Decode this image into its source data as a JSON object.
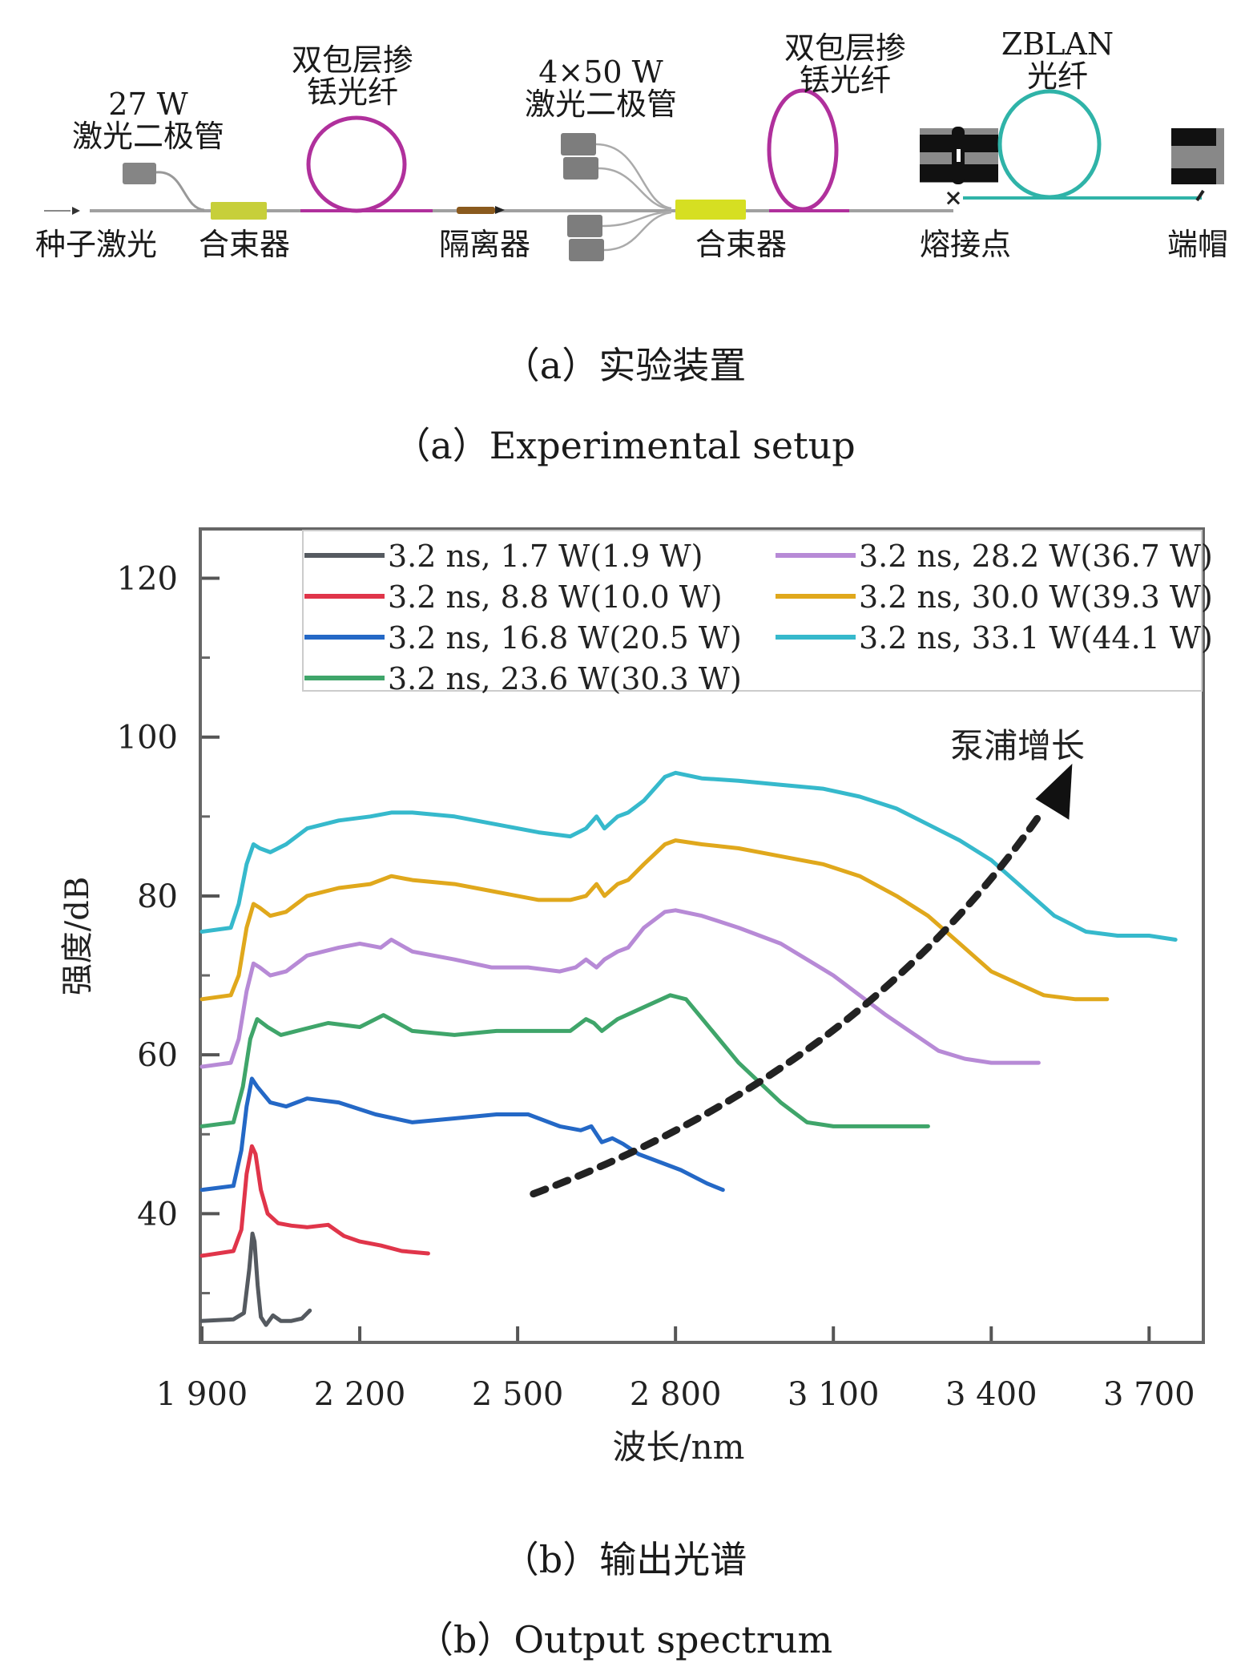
{
  "setup": {
    "labels": {
      "pump_diode_small_power": "27 W",
      "pump_diode_small_name": "激光二极管",
      "gain_fiber_1_line1": "双包层掺",
      "gain_fiber_1_line2": "铥光纤",
      "pump_diode_array_power": "4×50 W",
      "pump_diode_array_name": "激光二极管",
      "gain_fiber_2_line1": "双包层掺",
      "gain_fiber_2_line2": "铥光纤",
      "zblan_line1": "ZBLAN",
      "zblan_line2": "光纤",
      "seed": "种子激光",
      "combiner_1": "合束器",
      "isolator": "隔离器",
      "combiner_2": "合束器",
      "splice": "熔接点",
      "endcap": "端帽"
    },
    "colors": {
      "tm_fiber": "#b0309c",
      "zblan_fiber": "#2fb3a8",
      "combiner": "#c7cf3a",
      "isolator": "#8a5a1e",
      "diode": "#7d7d7d",
      "fiber": "#9a9a9a"
    },
    "caption_cn": "（a）实验装置",
    "caption_en": "（a）Experimental setup"
  },
  "chart_data": {
    "type": "line",
    "title": "",
    "xlabel": "波长/nm",
    "ylabel": "强度/dB",
    "xlim": [
      1900,
      3800
    ],
    "ylim": [
      24,
      126
    ],
    "xticks": [
      1900,
      2200,
      2500,
      2800,
      3100,
      3400,
      3700
    ],
    "xtick_labels": [
      "1 900",
      "2 200",
      "2 500",
      "2 800",
      "3 100",
      "3 400",
      "3 700"
    ],
    "yticks": [
      40,
      60,
      80,
      100,
      120
    ],
    "ytick_labels": [
      "40",
      "60",
      "80",
      "100",
      "120"
    ],
    "grid": false,
    "legend_position": "top",
    "annotation": {
      "text": "泵浦增长",
      "arrow_from": [
        2530,
        42.5
      ],
      "arrow_mid": [
        3150,
        62
      ],
      "arrow_to": [
        3490,
        90
      ],
      "style": "dashed-arrow"
    },
    "series": [
      {
        "name": "3.2 ns, 1.7 W(1.9 W)",
        "color": "#555a60",
        "x": [
          1900,
          1960,
          1980,
          1990,
          1996,
          2000,
          2006,
          2012,
          2022,
          2035,
          2050,
          2070,
          2090,
          2105
        ],
        "y": [
          26.5,
          26.7,
          27.5,
          33,
          37.5,
          36.5,
          31,
          27,
          26,
          27.2,
          26.5,
          26.5,
          26.8,
          27.8
        ]
      },
      {
        "name": "3.2 ns, 8.8 W(10.0 W)",
        "color": "#e0354a",
        "x": [
          1900,
          1960,
          1975,
          1985,
          1995,
          2002,
          2012,
          2025,
          2045,
          2070,
          2100,
          2140,
          2170,
          2200,
          2240,
          2280,
          2330
        ],
        "y": [
          34.7,
          35.3,
          38,
          45,
          48.5,
          47.5,
          43,
          40,
          38.8,
          38.5,
          38.3,
          38.6,
          37.2,
          36.5,
          36,
          35.3,
          35
        ]
      },
      {
        "name": "3.2 ns, 16.8 W(20.5 W)",
        "color": "#2468c6",
        "x": [
          1900,
          1960,
          1975,
          1985,
          1995,
          2005,
          2030,
          2060,
          2100,
          2160,
          2230,
          2300,
          2380,
          2460,
          2520,
          2580,
          2620,
          2640,
          2660,
          2680,
          2700,
          2730,
          2770,
          2810,
          2860,
          2890
        ],
        "y": [
          43,
          43.5,
          48,
          53.5,
          57,
          56,
          54,
          53.5,
          54.5,
          54,
          52.5,
          51.5,
          52,
          52.5,
          52.5,
          51,
          50.5,
          51,
          49,
          49.5,
          48.8,
          47.5,
          46.5,
          45.5,
          43.8,
          43
        ]
      },
      {
        "name": "3.2 ns, 23.6 W(30.3 W)",
        "color": "#3fa56a",
        "x": [
          1900,
          1960,
          1978,
          1992,
          2005,
          2025,
          2050,
          2080,
          2140,
          2200,
          2245,
          2300,
          2380,
          2460,
          2540,
          2600,
          2630,
          2645,
          2660,
          2690,
          2740,
          2790,
          2820,
          2870,
          2920,
          3000,
          3050,
          3100,
          3170,
          3240,
          3280
        ],
        "y": [
          51,
          51.5,
          56,
          62,
          64.5,
          63.5,
          62.5,
          63,
          64,
          63.5,
          65,
          63,
          62.5,
          63,
          63,
          63,
          64.5,
          64,
          63,
          64.5,
          66,
          67.5,
          67,
          63,
          59,
          54,
          51.5,
          51,
          51,
          51,
          51
        ]
      },
      {
        "name": "3.2 ns, 28.2 W(36.7 W)",
        "color": "#b78ad6",
        "x": [
          1900,
          1955,
          1970,
          1985,
          1998,
          2010,
          2030,
          2060,
          2100,
          2160,
          2200,
          2240,
          2260,
          2300,
          2380,
          2450,
          2520,
          2580,
          2610,
          2630,
          2650,
          2665,
          2690,
          2710,
          2740,
          2780,
          2800,
          2850,
          2920,
          3000,
          3100,
          3200,
          3300,
          3350,
          3400,
          3450,
          3490
        ],
        "y": [
          58.5,
          59,
          62,
          68,
          71.5,
          71,
          70,
          70.5,
          72.5,
          73.5,
          74,
          73.5,
          74.5,
          73,
          72,
          71,
          71,
          70.5,
          71,
          72,
          71,
          72,
          73,
          73.5,
          76,
          78,
          78.2,
          77.5,
          76,
          74,
          70,
          65,
          60.5,
          59.5,
          59,
          59,
          59
        ]
      },
      {
        "name": "3.2 ns, 30.0 W(39.3 W)",
        "color": "#e0a81c",
        "x": [
          1900,
          1955,
          1970,
          1985,
          1998,
          2010,
          2030,
          2060,
          2100,
          2160,
          2220,
          2260,
          2300,
          2380,
          2460,
          2540,
          2600,
          2630,
          2650,
          2665,
          2690,
          2710,
          2740,
          2780,
          2800,
          2850,
          2920,
          3000,
          3080,
          3150,
          3220,
          3280,
          3340,
          3400,
          3450,
          3500,
          3560,
          3620
        ],
        "y": [
          67,
          67.5,
          70,
          76,
          79,
          78.5,
          77.5,
          78,
          80,
          81,
          81.5,
          82.5,
          82,
          81.5,
          80.5,
          79.5,
          79.5,
          80,
          81.5,
          80,
          81.5,
          82,
          84,
          86.5,
          87,
          86.5,
          86,
          85,
          84,
          82.5,
          80,
          77.5,
          74,
          70.5,
          69,
          67.5,
          67,
          67
        ]
      },
      {
        "name": "3.2 ns, 33.1 W(44.1 W)",
        "color": "#36b9cc",
        "x": [
          1900,
          1955,
          1970,
          1985,
          1998,
          2010,
          2030,
          2060,
          2100,
          2160,
          2220,
          2260,
          2300,
          2380,
          2460,
          2540,
          2600,
          2630,
          2650,
          2665,
          2690,
          2710,
          2740,
          2780,
          2800,
          2850,
          2920,
          3000,
          3080,
          3150,
          3220,
          3280,
          3340,
          3400,
          3460,
          3520,
          3580,
          3640,
          3700,
          3750
        ],
        "y": [
          75.5,
          76,
          79,
          84,
          86.5,
          86,
          85.5,
          86.5,
          88.5,
          89.5,
          90,
          90.5,
          90.5,
          90,
          89,
          88,
          87.5,
          88.5,
          90,
          88.5,
          90,
          90.5,
          92,
          95,
          95.5,
          94.8,
          94.5,
          94,
          93.5,
          92.5,
          91,
          89,
          87,
          84.5,
          81,
          77.5,
          75.5,
          75,
          75,
          74.5
        ]
      }
    ]
  },
  "chart_caption_cn": "（b）输出光谱",
  "chart_caption_en": "（b）Output spectrum"
}
